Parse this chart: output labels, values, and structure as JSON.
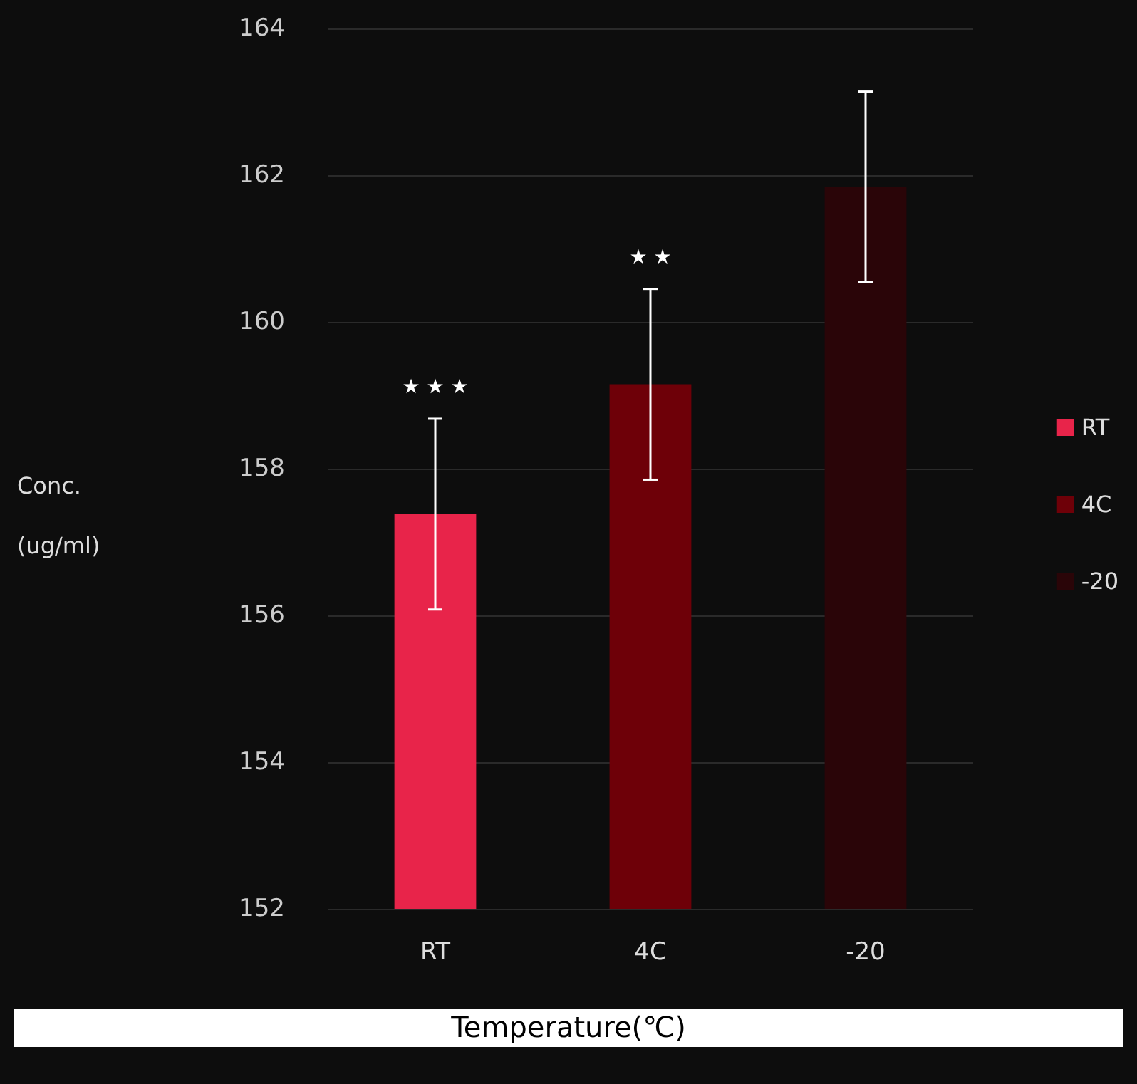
{
  "chart_data": {
    "type": "bar",
    "xlabel": "Temperature(℃)",
    "ylabel": "Conc.\n(ug/ml)",
    "categories": [
      "RT",
      "4C",
      "-20"
    ],
    "series": [
      {
        "name": "RT",
        "color": "#e8244a",
        "values": [
          157.38,
          null,
          null
        ],
        "errors": [
          1.3,
          null,
          null
        ]
      },
      {
        "name": "4C",
        "color": "#6e0008",
        "values": [
          null,
          159.15,
          null
        ],
        "errors": [
          null,
          1.3,
          null
        ]
      },
      {
        "name": "-20",
        "color": "#2a0508",
        "values": [
          null,
          null,
          161.84
        ],
        "errors": [
          null,
          null,
          1.3
        ]
      }
    ],
    "stacked": true,
    "ylim": [
      152,
      164
    ],
    "yticks": [
      152,
      154,
      156,
      158,
      160,
      162,
      164
    ],
    "grid": "y",
    "legend": "right",
    "annotations": [
      "★ ★ ★",
      "★ ★"
    ]
  }
}
